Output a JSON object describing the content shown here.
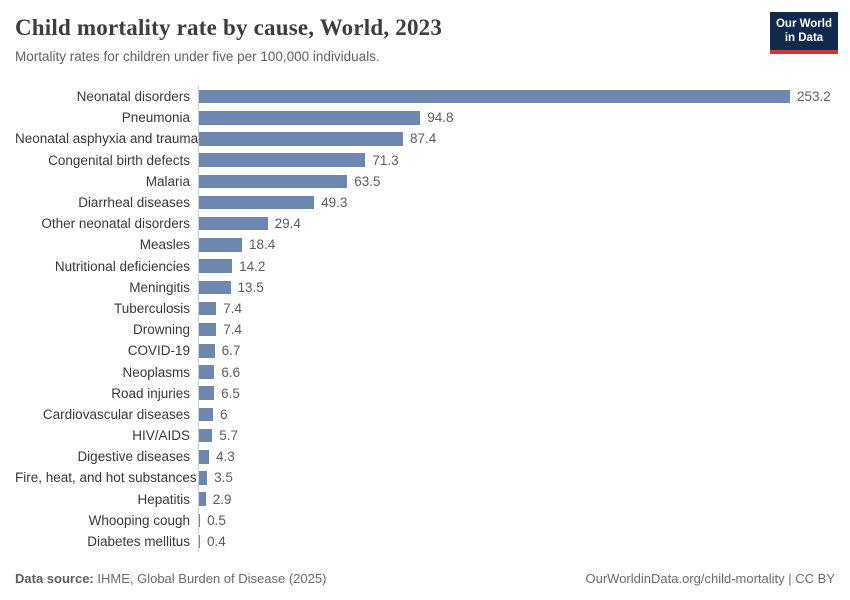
{
  "header": {
    "title": "Child mortality rate by cause, World, 2023",
    "subtitle": "Mortality rates for children under five per 100,000 individuals.",
    "logo": {
      "line1": "Our World",
      "line2": "in Data"
    }
  },
  "chart_data": {
    "type": "bar",
    "orientation": "horizontal",
    "title": "Child mortality rate by cause, World, 2023",
    "subtitle": "Mortality rates for children under five per 100,000 individuals.",
    "categories": [
      "Neonatal disorders",
      "Pneumonia",
      "Neonatal asphyxia and trauma",
      "Congenital birth defects",
      "Malaria",
      "Diarrheal diseases",
      "Other neonatal disorders",
      "Measles",
      "Nutritional deficiencies",
      "Meningitis",
      "Tuberculosis",
      "Drowning",
      "COVID-19",
      "Neoplasms",
      "Road injuries",
      "Cardiovascular diseases",
      "HIV/AIDS",
      "Digestive diseases",
      "Fire, heat, and hot substances",
      "Hepatitis",
      "Whooping cough",
      "Diabetes mellitus"
    ],
    "values": [
      253.2,
      94.8,
      87.4,
      71.3,
      63.5,
      49.3,
      29.4,
      18.4,
      14.2,
      13.5,
      7.4,
      7.4,
      6.7,
      6.6,
      6.5,
      6,
      5.7,
      4.3,
      3.5,
      2.9,
      0.5,
      0.4
    ],
    "value_labels": [
      "253.2",
      "94.8",
      "87.4",
      "71.3",
      "63.5",
      "49.3",
      "29.4",
      "18.4",
      "14.2",
      "13.5",
      "7.4",
      "7.4",
      "6.7",
      "6.6",
      "6.5",
      "6",
      "5.7",
      "4.3",
      "3.5",
      "2.9",
      "0.5",
      "0.4"
    ],
    "xlabel": "",
    "ylabel": "",
    "xlim": [
      0,
      260
    ],
    "grid": false,
    "legend": false,
    "bar_color": "#6e87ae",
    "data_labels": true
  },
  "footer": {
    "datasource_label": "Data source:",
    "datasource_value": " IHME, Global Burden of Disease (2025)",
    "link": "OurWorldinData.org/child-mortality | CC BY"
  }
}
